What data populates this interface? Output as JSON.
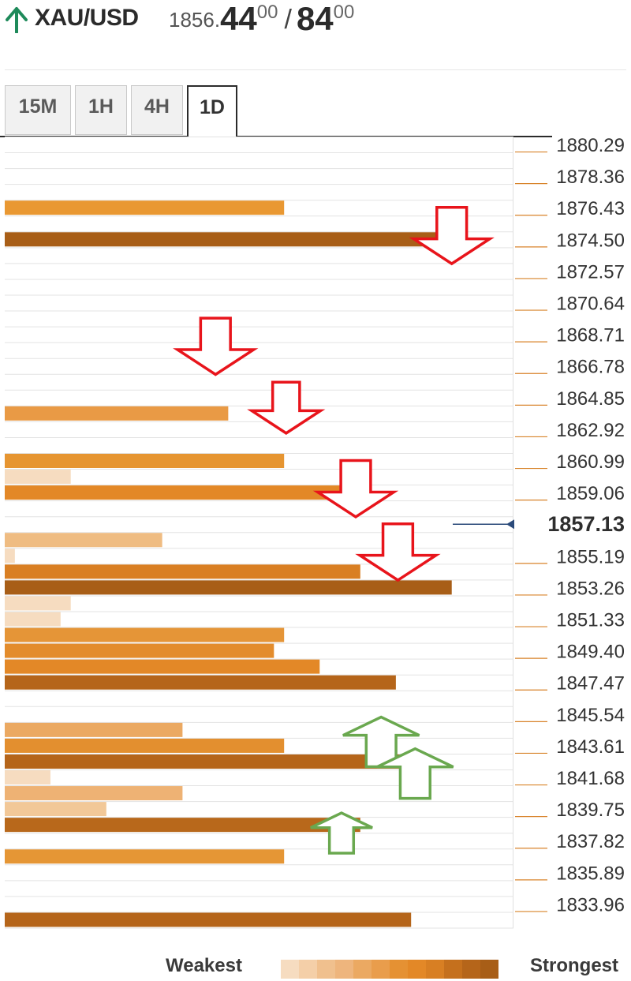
{
  "header": {
    "symbol": "XAU/USD",
    "price_prefix": "1856.",
    "price_main": "44",
    "price_sup": "00",
    "separator": "/",
    "price_main2": "84",
    "price_sup2": "00",
    "trend_color": "#1e8a5a"
  },
  "tabs": [
    {
      "label": "15M",
      "active": false
    },
    {
      "label": "1H",
      "active": false
    },
    {
      "label": "4H",
      "active": false
    },
    {
      "label": "1D",
      "active": true
    }
  ],
  "legend": {
    "weakest": "Weakest",
    "strongest": "Strongest",
    "scale_colors": [
      "#f6dcc0",
      "#f4cfa8",
      "#f0c08e",
      "#eeb57d",
      "#eba962",
      "#e99d4c",
      "#e59133",
      "#e38827",
      "#d87f23",
      "#c5701d",
      "#b5651a",
      "#a85e17"
    ]
  },
  "chart_data": {
    "type": "bar",
    "price_levels": [
      "1880.29",
      "1878.36",
      "1876.43",
      "1874.50",
      "1872.57",
      "1870.64",
      "1868.71",
      "1866.78",
      "1864.85",
      "1862.92",
      "1860.99",
      "1859.06",
      "1857.13",
      "1855.19",
      "1853.26",
      "1851.33",
      "1849.40",
      "1847.47",
      "1845.54",
      "1843.61",
      "1841.68",
      "1839.75",
      "1837.82",
      "1835.89",
      "1833.96"
    ],
    "current_price": "1857.13",
    "value_scale": [
      0,
      100
    ],
    "bars": [
      {
        "row": 4,
        "value": 55,
        "color": "#e99832"
      },
      {
        "row": 6,
        "value": 90,
        "color": "#a85e17"
      },
      {
        "row": 17,
        "value": 44,
        "color": "#e99a45"
      },
      {
        "row": 20,
        "value": 55,
        "color": "#e69531"
      },
      {
        "row": 21,
        "value": 13,
        "color": "#f6dcc0"
      },
      {
        "row": 22,
        "value": 66,
        "color": "#e38827"
      },
      {
        "row": 25,
        "value": 31,
        "color": "#efbc82"
      },
      {
        "row": 26,
        "value": 2,
        "color": "#f6dcc0"
      },
      {
        "row": 27,
        "value": 70,
        "color": "#d97f23"
      },
      {
        "row": 28,
        "value": 88,
        "color": "#a85e17"
      },
      {
        "row": 29,
        "value": 13,
        "color": "#f6dcc0"
      },
      {
        "row": 30,
        "value": 11,
        "color": "#f6dcc0"
      },
      {
        "row": 31,
        "value": 55,
        "color": "#e59537"
      },
      {
        "row": 32,
        "value": 53,
        "color": "#e38c2c"
      },
      {
        "row": 33,
        "value": 62,
        "color": "#e38827"
      },
      {
        "row": 34,
        "value": 77,
        "color": "#b5651a"
      },
      {
        "row": 37,
        "value": 35,
        "color": "#eba962"
      },
      {
        "row": 38,
        "value": 55,
        "color": "#e38f2f"
      },
      {
        "row": 39,
        "value": 78,
        "color": "#b5651a"
      },
      {
        "row": 40,
        "value": 9,
        "color": "#f6dcc0"
      },
      {
        "row": 41,
        "value": 35,
        "color": "#eeb274"
      },
      {
        "row": 42,
        "value": 20,
        "color": "#f2c898"
      },
      {
        "row": 43,
        "value": 70,
        "color": "#b8681b"
      },
      {
        "row": 45,
        "value": 55,
        "color": "#e59635"
      },
      {
        "row": 49,
        "value": 80,
        "color": "#b5651a"
      }
    ],
    "arrows": [
      {
        "direction": "down",
        "row": 5,
        "position": 88,
        "size": 1.05,
        "color": "#e8141b"
      },
      {
        "direction": "down",
        "row": 12,
        "position": 41.5,
        "size": 1.05,
        "color": "#e8141b"
      },
      {
        "direction": "down",
        "row": 16,
        "position": 55.4,
        "size": 0.95,
        "color": "#e8141b"
      },
      {
        "direction": "down",
        "row": 21,
        "position": 69.1,
        "size": 1.05,
        "color": "#e8141b"
      },
      {
        "direction": "down",
        "row": 25,
        "position": 77.4,
        "size": 1.05,
        "color": "#e8141b"
      },
      {
        "direction": "up",
        "row": 37,
        "position": 74.1,
        "size": 1.05,
        "color": "#6aa84f"
      },
      {
        "direction": "up",
        "row": 39,
        "position": 80.8,
        "size": 1.05,
        "color": "#6aa84f"
      },
      {
        "direction": "up",
        "row": 43,
        "position": 66.3,
        "size": 0.85,
        "color": "#6aa84f"
      }
    ]
  }
}
